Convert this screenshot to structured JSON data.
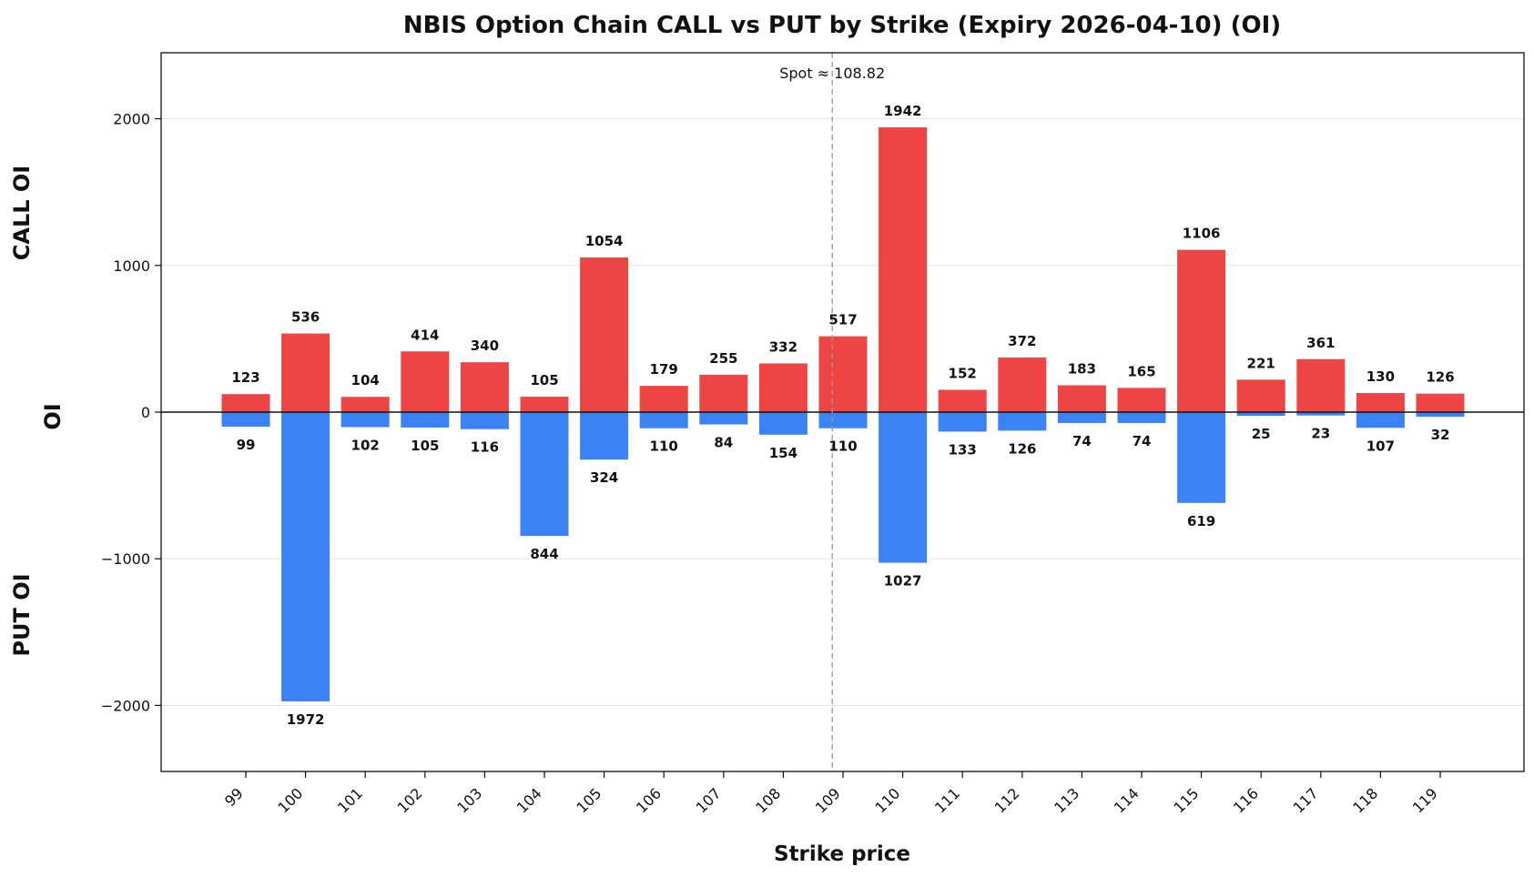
{
  "chart_data": {
    "type": "bar",
    "title": "NBIS Option Chain CALL vs PUT by Strike (Expiry 2026-04-10) (OI)",
    "xlabel": "Strike price",
    "ylabel": "OI",
    "upper_label": "CALL OI",
    "lower_label": "PUT OI",
    "categories": [
      "99",
      "100",
      "101",
      "102",
      "103",
      "104",
      "105",
      "106",
      "107",
      "108",
      "109",
      "110",
      "111",
      "112",
      "113",
      "114",
      "115",
      "116",
      "117",
      "118",
      "119"
    ],
    "series": [
      {
        "name": "CALL",
        "color": "#ef4444",
        "values": [
          123,
          536,
          104,
          414,
          340,
          105,
          1054,
          179,
          255,
          332,
          517,
          1942,
          152,
          372,
          183,
          165,
          1106,
          221,
          361,
          130,
          126
        ]
      },
      {
        "name": "PUT",
        "color": "#3b82f6",
        "values": [
          99,
          1972,
          102,
          105,
          116,
          844,
          324,
          110,
          84,
          154,
          110,
          1027,
          133,
          126,
          74,
          74,
          619,
          25,
          23,
          107,
          32
        ]
      }
    ],
    "ylim": [
      -2450,
      2450
    ],
    "yticks": [
      2000,
      1000,
      0,
      -1000,
      -2000
    ],
    "ytick_labels": [
      "2000",
      "1000",
      "0",
      "−1000",
      "−2000"
    ],
    "spot": {
      "value": 108.82,
      "label": "Spot ≈ 108.82"
    },
    "grid": true
  }
}
